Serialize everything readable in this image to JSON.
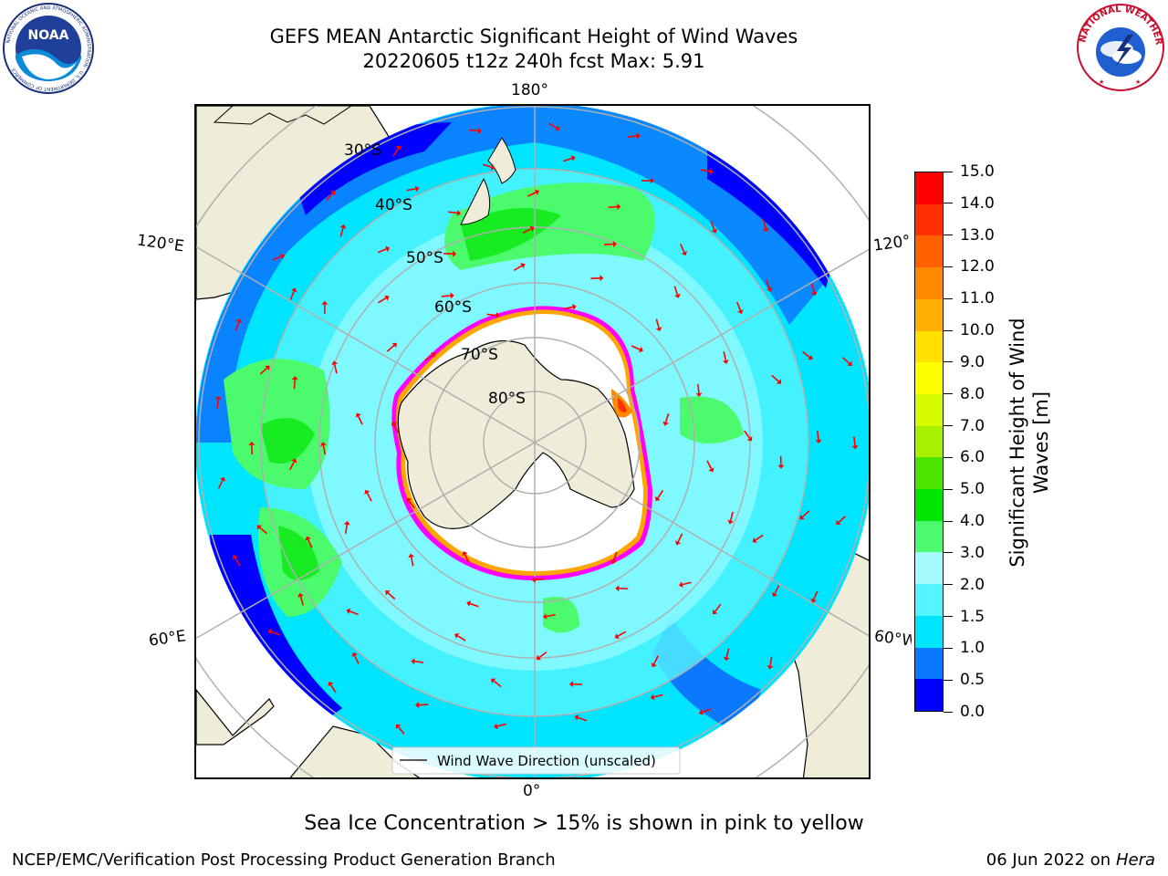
{
  "header": {
    "title_line1": "GEFS MEAN Antarctic Significant Height of Wind Waves",
    "title_line2": "20220605 t12z 240h fcst   Max: 5.91"
  },
  "logos": {
    "left": {
      "name": "NOAA",
      "text": "NOAA",
      "ring_text": "NATIONAL OCEANIC AND ATMOSPHERIC ADMINISTRATION · U.S. DEPARTMENT OF COMMERCE"
    },
    "right": {
      "name": "National Weather Service",
      "ring_text": "NATIONAL WEATHER SERVICE"
    }
  },
  "map": {
    "projection": "south-polar-stereographic",
    "longitude_labels": {
      "top": "180°",
      "bottom": "0°",
      "left_upper": "120°E",
      "left_lower": "60°E",
      "right_upper": "120°W",
      "right_lower": "60°W"
    },
    "latitude_labels": [
      "30°S",
      "40°S",
      "50°S",
      "60°S",
      "70°S",
      "80°S"
    ],
    "legend": "Wind Wave Direction (unscaled)",
    "colors": {
      "land": "#efedda",
      "ice": "#ffffff",
      "ice_edge": [
        "#ff00ff",
        "#ffa500",
        "#ffff00"
      ],
      "arrow": "#ff0000",
      "grid": "#b0b0b0"
    }
  },
  "colorbar": {
    "label": "Significant Height of Wind Waves [m]",
    "label_line1": "Significant Height of Wind",
    "label_line2": "Waves [m]",
    "ticks": [
      "0.0",
      "0.5",
      "1.0",
      "1.5",
      "2.0",
      "3.0",
      "4.0",
      "5.0",
      "6.0",
      "7.0",
      "8.0",
      "9.0",
      "10.0",
      "11.0",
      "12.0",
      "13.0",
      "14.0",
      "15.0"
    ],
    "colors": [
      "#0000ff",
      "#0a78ff",
      "#00e5ff",
      "#55f5ff",
      "#a6fbff",
      "#4cfa6e",
      "#00e600",
      "#4ae600",
      "#a6f000",
      "#d6fa00",
      "#ffff00",
      "#ffe000",
      "#ffb000",
      "#ff8a00",
      "#ff6000",
      "#ff3000",
      "#ff0000"
    ]
  },
  "footer": {
    "note": "Sea Ice Concentration > 15% is shown in pink to yellow",
    "left": "NCEP/EMC/Verification Post Processing Product Generation Branch",
    "right_date": "06 Jun 2022 on",
    "right_host": "Hera"
  }
}
